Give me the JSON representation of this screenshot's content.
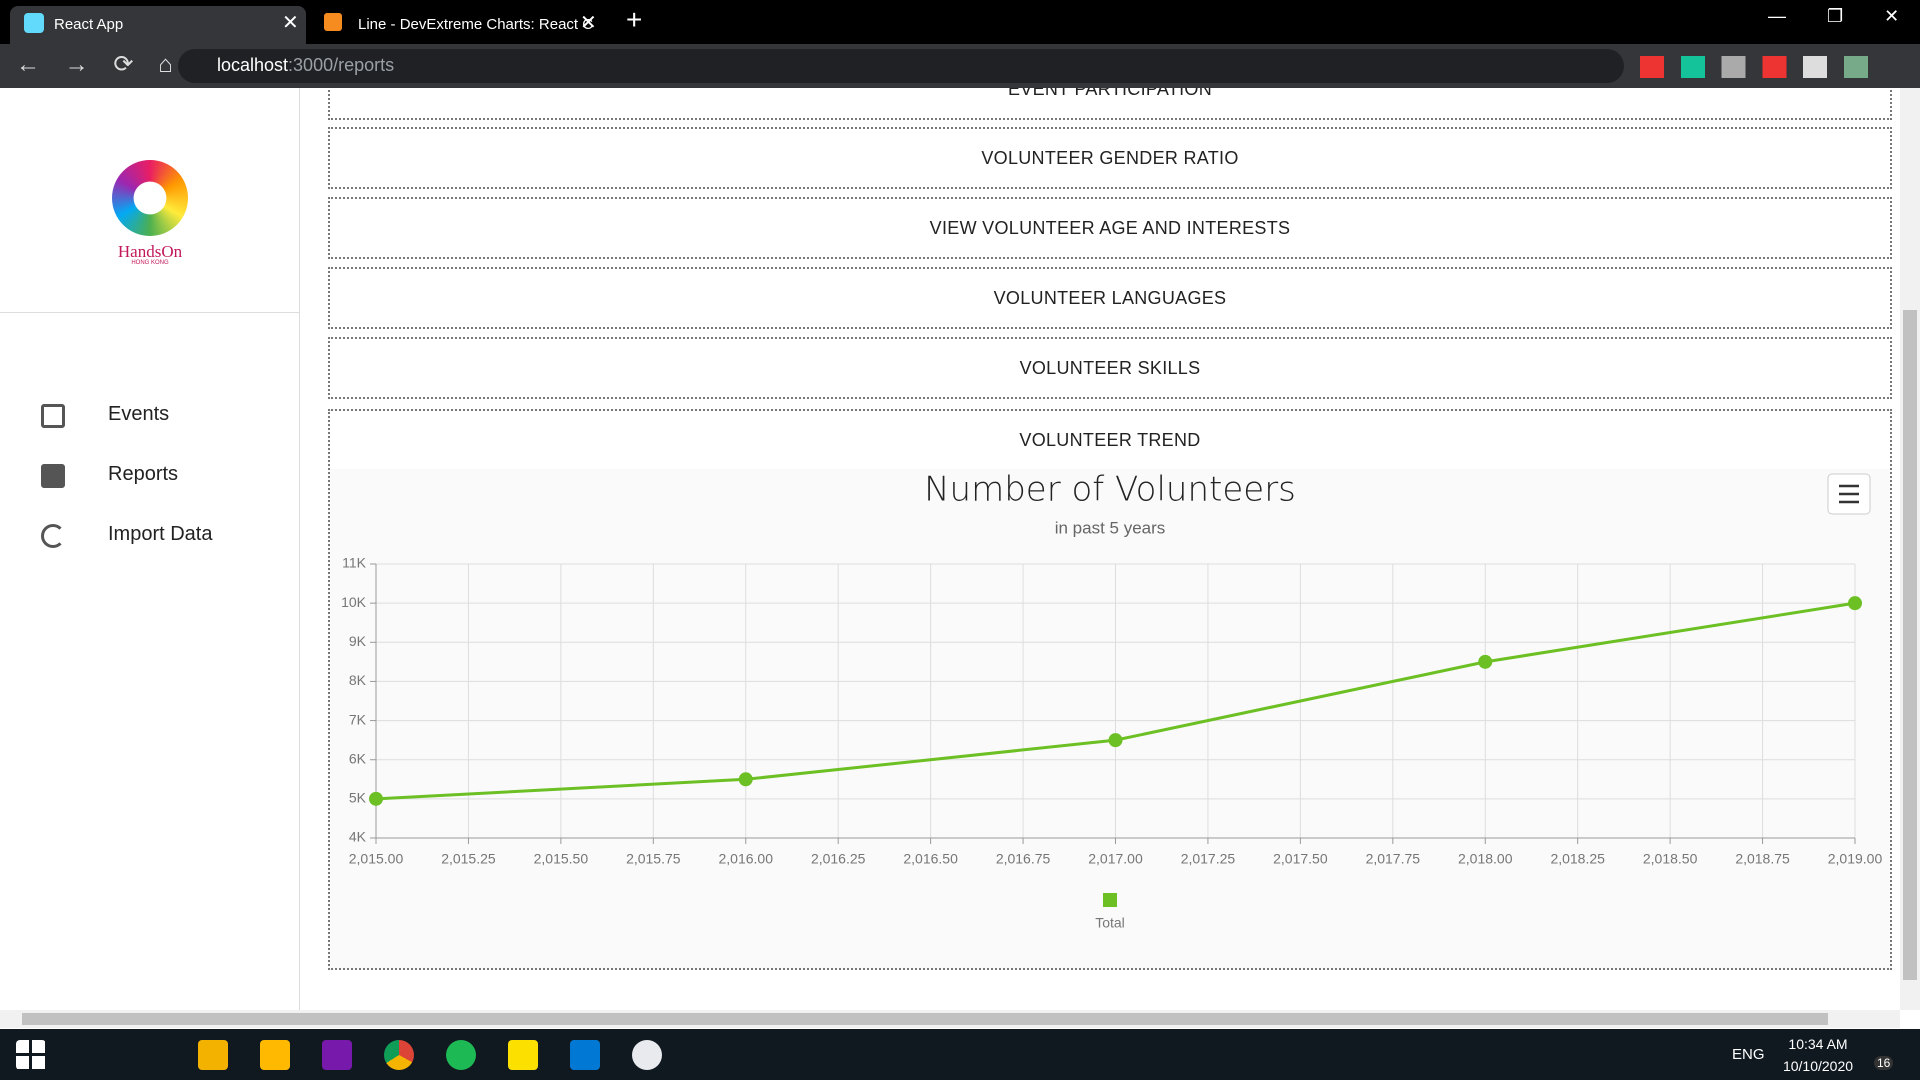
{
  "browser": {
    "tabs": [
      "React App",
      "Line - DevExtreme Charts: React C"
    ],
    "url_host": "localhost",
    "url_path": ":3000/reports"
  },
  "sidebar": {
    "logo": "HandsOn",
    "logo_sub": "HONG KONG",
    "nav": [
      "Events",
      "Reports",
      "Import Data"
    ]
  },
  "sections": [
    "EVENT PARTICIPATION",
    "VOLUNTEER GENDER RATIO",
    "VIEW VOLUNTEER AGE AND INTERESTS",
    "VOLUNTEER LANGUAGES",
    "VOLUNTEER SKILLS",
    "VOLUNTEER TREND"
  ],
  "chart_data": {
    "type": "line",
    "title": "Number of Volunteers",
    "subtitle": "in past 5 years",
    "x": [
      2015,
      2016,
      2017,
      2018,
      2019
    ],
    "series": [
      {
        "name": "Total",
        "color": "#6cc024",
        "values": [
          5000,
          5500,
          6500,
          8500,
          10000
        ]
      }
    ],
    "xlim": [
      2015,
      2019
    ],
    "xticks": [
      {
        "value": 2015,
        "label": "2,015.00"
      },
      {
        "value": 2015.25,
        "label": "2,015.25"
      },
      {
        "value": 2015.5,
        "label": "2,015.50"
      },
      {
        "value": 2015.75,
        "label": "2,015.75"
      },
      {
        "value": 2016,
        "label": "2,016.00"
      },
      {
        "value": 2016.25,
        "label": "2,016.25"
      },
      {
        "value": 2016.5,
        "label": "2,016.50"
      },
      {
        "value": 2016.75,
        "label": "2,016.75"
      },
      {
        "value": 2017,
        "label": "2,017.00"
      },
      {
        "value": 2017.25,
        "label": "2,017.25"
      },
      {
        "value": 2017.5,
        "label": "2,017.50"
      },
      {
        "value": 2017.75,
        "label": "2,017.75"
      },
      {
        "value": 2018,
        "label": "2,018.00"
      },
      {
        "value": 2018.25,
        "label": "2,018.25"
      },
      {
        "value": 2018.5,
        "label": "2,018.50"
      },
      {
        "value": 2018.75,
        "label": "2,018.75"
      },
      {
        "value": 2019,
        "label": "2,019.00"
      }
    ],
    "ylim": [
      4000,
      11000
    ],
    "yticks": [
      {
        "value": 4000,
        "label": "4K"
      },
      {
        "value": 5000,
        "label": "5K"
      },
      {
        "value": 6000,
        "label": "6K"
      },
      {
        "value": 7000,
        "label": "7K"
      },
      {
        "value": 8000,
        "label": "8K"
      },
      {
        "value": 9000,
        "label": "9K"
      },
      {
        "value": 10000,
        "label": "10K"
      },
      {
        "value": 11000,
        "label": "11K"
      }
    ],
    "grid": true,
    "legend": "bottom"
  },
  "taskbar": {
    "language": "ENG",
    "time": "10:34 AM",
    "date": "10/10/2020",
    "notifications": "16"
  }
}
